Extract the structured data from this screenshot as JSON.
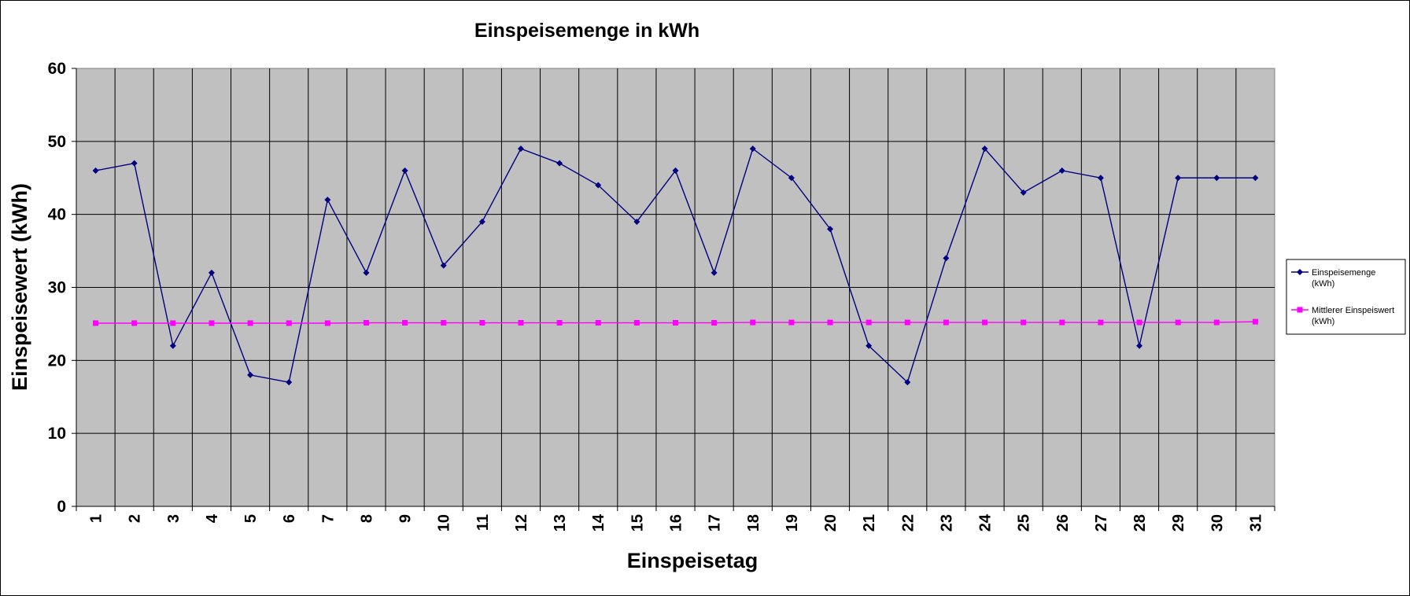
{
  "chart_data": {
    "type": "line",
    "title": "Einspeisemenge in kWh",
    "xlabel": "Einspeisetag",
    "ylabel": "Einspeisewert  (kWh)",
    "ylim": [
      0,
      60
    ],
    "yticks": [
      "0",
      "10",
      "20",
      "30",
      "40",
      "50",
      "60"
    ],
    "categories": [
      "1",
      "2",
      "3",
      "4",
      "5",
      "6",
      "7",
      "8",
      "9",
      "10",
      "11",
      "12",
      "13",
      "14",
      "15",
      "16",
      "17",
      "18",
      "19",
      "20",
      "21",
      "22",
      "23",
      "24",
      "25",
      "26",
      "27",
      "28",
      "29",
      "30",
      "31"
    ],
    "grid": true,
    "legend_position": "right",
    "plot_background": "#c0c0c0",
    "series": [
      {
        "name_lines": [
          "Einspeisemenge",
          "(kWh)"
        ],
        "color": "#000080",
        "marker": "diamond",
        "values": [
          46,
          47,
          22,
          32,
          18,
          17,
          42,
          32,
          46,
          33,
          39,
          49,
          47,
          44,
          39,
          46,
          32,
          49,
          45,
          38,
          22,
          17,
          34,
          49,
          43,
          46,
          45,
          22,
          45,
          45,
          45
        ]
      },
      {
        "name_lines": [
          "Mittlerer Einspeiswert",
          "(kWh)"
        ],
        "color": "#ff00ff",
        "marker": "square",
        "values": [
          25.1,
          25.1,
          25.1,
          25.1,
          25.1,
          25.1,
          25.1,
          25.15,
          25.15,
          25.15,
          25.15,
          25.15,
          25.15,
          25.15,
          25.15,
          25.15,
          25.15,
          25.2,
          25.2,
          25.2,
          25.2,
          25.2,
          25.2,
          25.2,
          25.2,
          25.2,
          25.2,
          25.2,
          25.2,
          25.2,
          25.3
        ]
      }
    ]
  }
}
